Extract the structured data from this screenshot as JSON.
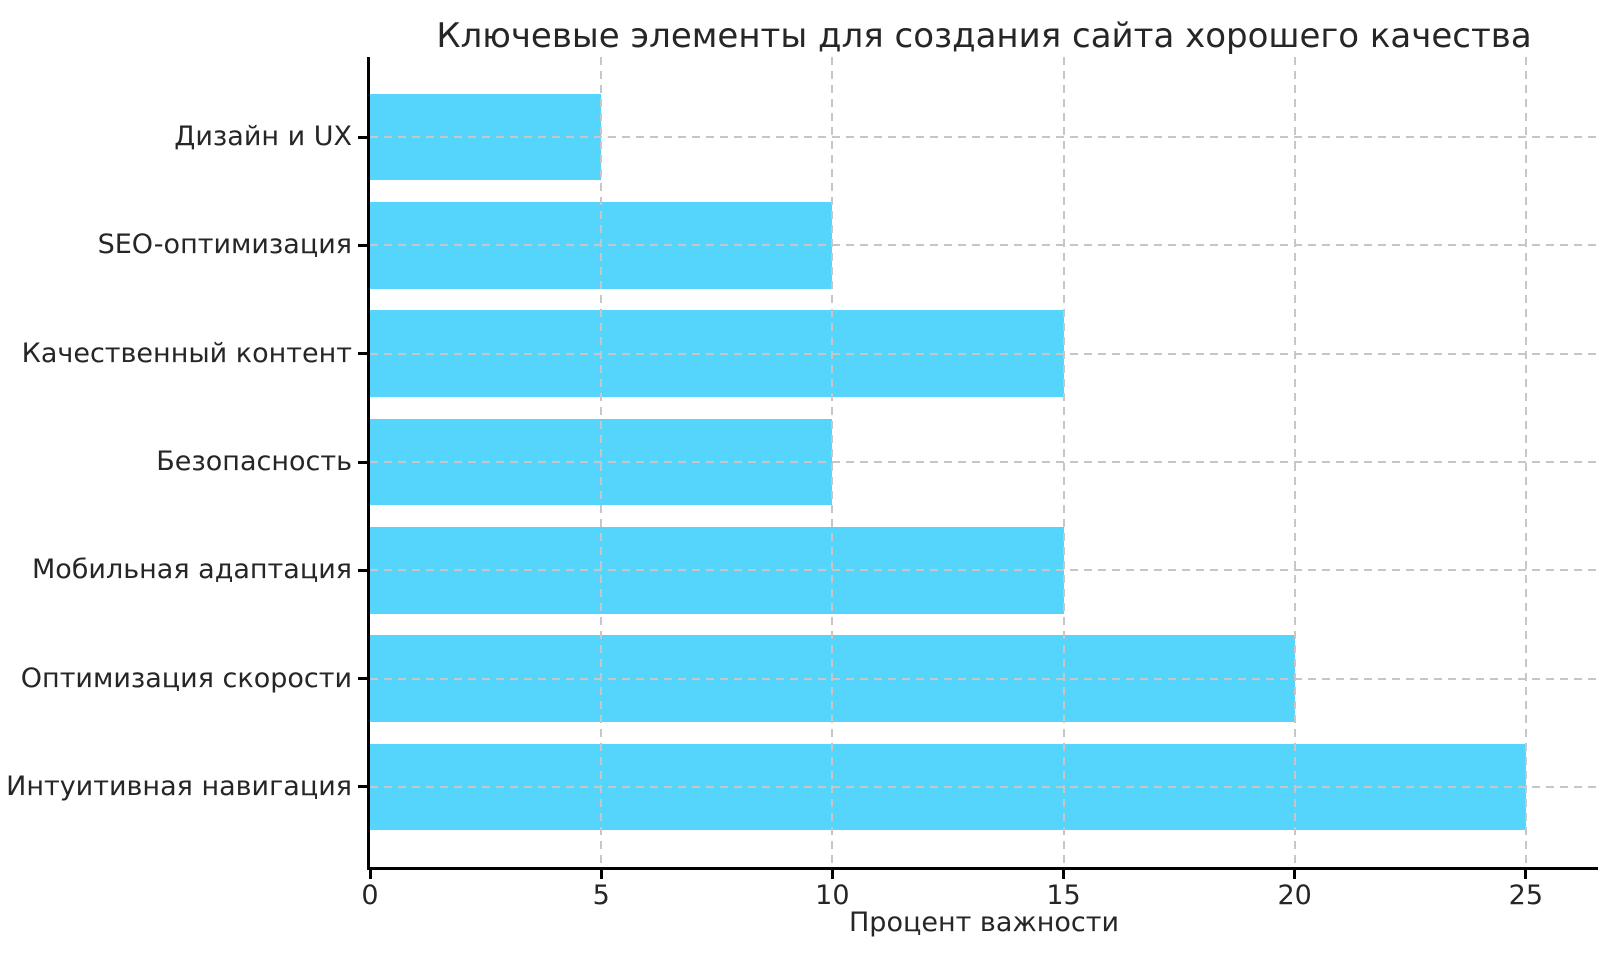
{
  "chart_data": {
    "type": "bar",
    "orientation": "horizontal",
    "title": "Ключевые элементы для создания сайта хорошего качества",
    "xlabel": "Процент важности",
    "ylabel": "",
    "categories": [
      "Дизайн и UX",
      "SEO-оптимизация",
      "Качественный контент",
      "Безопасность",
      "Мобильная адаптация",
      "Оптимизация скорости",
      "Интуитивная навигация"
    ],
    "values": [
      5,
      10,
      15,
      10,
      15,
      20,
      25
    ],
    "x_ticks": [
      0,
      5,
      10,
      15,
      20,
      25
    ],
    "xlim": [
      0,
      26.56
    ],
    "bar_color": "#55d5fb",
    "grid": true,
    "grid_style": "dashed",
    "grid_color": "#c6c6c6",
    "legend_position": "none",
    "background_color": "#ffffff"
  }
}
